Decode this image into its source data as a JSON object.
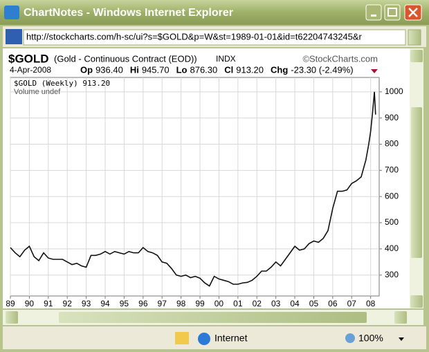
{
  "window": {
    "title": "ChartNotes - Windows Internet Explorer",
    "url": "http://stockcharts.com/h-sc/ui?s=$GOLD&p=W&st=1989-01-01&id=t62204743245&r"
  },
  "chart_header": {
    "symbol": "$GOLD",
    "name": "(Gold - Continuous Contract (EOD))",
    "exchange": "INDX",
    "copyright": "©StockCharts.com",
    "date": "4-Apr-2008",
    "stats": [
      {
        "label": "Op",
        "value": "936.40"
      },
      {
        "label": "Hi",
        "value": "945.70"
      },
      {
        "label": "Lo",
        "value": "876.30"
      },
      {
        "label": "Cl",
        "value": "913.20"
      },
      {
        "label": "Chg",
        "value": "-23.30 (-2.49%)"
      }
    ],
    "legend": [
      "$GOLD (Weekly) 913.20",
      "Volume undef"
    ]
  },
  "chart_data": {
    "type": "line",
    "x": [
      1989,
      1989.25,
      1989.5,
      1989.75,
      1990,
      1990.25,
      1990.5,
      1990.75,
      1991,
      1991.25,
      1991.5,
      1991.75,
      1992,
      1992.25,
      1992.5,
      1992.75,
      1993,
      1993.25,
      1993.5,
      1993.75,
      1994,
      1994.25,
      1994.5,
      1994.75,
      1995,
      1995.25,
      1995.5,
      1995.75,
      1996,
      1996.25,
      1996.5,
      1996.75,
      1997,
      1997.25,
      1997.5,
      1997.75,
      1998,
      1998.25,
      1998.5,
      1998.75,
      1999,
      1999.25,
      1999.5,
      1999.75,
      2000,
      2000.25,
      2000.5,
      2000.75,
      2001,
      2001.25,
      2001.5,
      2001.75,
      2002,
      2002.25,
      2002.5,
      2002.75,
      2003,
      2003.25,
      2003.5,
      2003.75,
      2004,
      2004.25,
      2004.5,
      2004.75,
      2005,
      2005.25,
      2005.5,
      2005.75,
      2006,
      2006.25,
      2006.5,
      2006.75,
      2007,
      2007.25,
      2007.5,
      2007.75,
      2007.9,
      2008,
      2008.1,
      2008.2,
      2008.26
    ],
    "series": [
      {
        "name": "$GOLD (Weekly)",
        "color": "#111111",
        "values": [
          405,
          385,
          370,
          395,
          410,
          370,
          355,
          385,
          365,
          360,
          360,
          360,
          350,
          340,
          345,
          335,
          330,
          375,
          375,
          380,
          390,
          380,
          390,
          385,
          380,
          390,
          385,
          385,
          405,
          390,
          385,
          375,
          350,
          345,
          325,
          300,
          295,
          300,
          290,
          295,
          288,
          270,
          258,
          295,
          285,
          280,
          275,
          265,
          265,
          270,
          272,
          280,
          295,
          315,
          315,
          330,
          350,
          335,
          360,
          385,
          410,
          395,
          400,
          420,
          430,
          425,
          440,
          470,
          555,
          620,
          620,
          625,
          650,
          660,
          675,
          740,
          800,
          850,
          920,
          1000,
          913.2
        ]
      }
    ],
    "xlim": [
      1989,
      2008.45
    ],
    "ylim": [
      220,
      1055
    ],
    "xticks": [
      {
        "value": 1989,
        "label": "89"
      },
      {
        "value": 1990,
        "label": "90"
      },
      {
        "value": 1991,
        "label": "91"
      },
      {
        "value": 1992,
        "label": "92"
      },
      {
        "value": 1993,
        "label": "93"
      },
      {
        "value": 1994,
        "label": "94"
      },
      {
        "value": 1995,
        "label": "95"
      },
      {
        "value": 1996,
        "label": "96"
      },
      {
        "value": 1997,
        "label": "97"
      },
      {
        "value": 1998,
        "label": "98"
      },
      {
        "value": 1999,
        "label": "99"
      },
      {
        "value": 2000,
        "label": "00"
      },
      {
        "value": 2001,
        "label": "01"
      },
      {
        "value": 2002,
        "label": "02"
      },
      {
        "value": 2003,
        "label": "03"
      },
      {
        "value": 2004,
        "label": "04"
      },
      {
        "value": 2005,
        "label": "05"
      },
      {
        "value": 2006,
        "label": "06"
      },
      {
        "value": 2007,
        "label": "07"
      },
      {
        "value": 2008,
        "label": "08"
      }
    ],
    "yticks": [
      300,
      400,
      500,
      600,
      700,
      800,
      900,
      1000
    ],
    "grid": true
  },
  "status_bar": {
    "zone": "Internet",
    "zoom": "100%"
  }
}
